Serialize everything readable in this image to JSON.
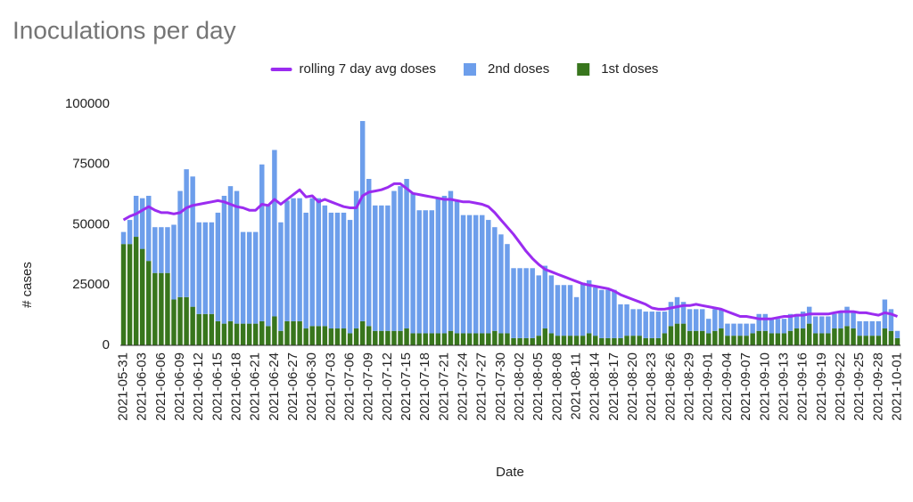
{
  "chart_data": {
    "type": "bar",
    "stacked": true,
    "title": "Inoculations per day",
    "x_label": "Date",
    "y_label": "# cases",
    "categories": [
      "2021-05-31",
      null,
      null,
      "2021-06-03",
      null,
      null,
      "2021-06-06",
      null,
      null,
      "2021-06-09",
      null,
      null,
      "2021-06-12",
      null,
      null,
      "2021-06-15",
      null,
      null,
      "2021-06-18",
      null,
      null,
      "2021-06-21",
      null,
      null,
      "2021-06-24",
      null,
      null,
      "2021-06-27",
      null,
      null,
      "2021-06-30",
      null,
      null,
      "2021-07-03",
      null,
      null,
      "2021-07-06",
      null,
      null,
      "2021-07-09",
      null,
      null,
      "2021-07-12",
      null,
      null,
      "2021-07-15",
      null,
      null,
      "2021-07-18",
      null,
      null,
      "2021-07-21",
      null,
      null,
      "2021-07-24",
      null,
      null,
      "2021-07-27",
      null,
      null,
      "2021-07-30",
      null,
      null,
      "2021-08-02",
      null,
      null,
      "2021-08-05",
      null,
      null,
      "2021-08-08",
      null,
      null,
      "2021-08-11",
      null,
      null,
      "2021-08-14",
      null,
      null,
      "2021-08-17",
      null,
      null,
      "2021-08-20",
      null,
      null,
      "2021-08-23",
      null,
      null,
      "2021-08-26",
      null,
      null,
      "2021-08-29",
      null,
      null,
      "2021-09-01",
      null,
      null,
      "2021-09-04",
      null,
      null,
      "2021-09-07",
      null,
      null,
      "2021-09-10",
      null,
      null,
      "2021-09-13",
      null,
      null,
      "2021-09-16",
      null,
      null,
      "2021-09-19",
      null,
      null,
      "2021-09-22",
      null,
      null,
      "2021-09-25",
      null,
      null,
      "2021-09-28",
      null,
      null,
      "2021-10-01"
    ],
    "series": [
      {
        "name": "rolling 7 day avg doses",
        "type": "line",
        "color": "#9b2cf0",
        "values": [
          52000,
          53500,
          54500,
          56000,
          57500,
          56000,
          55000,
          55000,
          54500,
          55000,
          57000,
          58000,
          58500,
          59000,
          59500,
          60000,
          59500,
          58500,
          57500,
          57000,
          56000,
          56000,
          58500,
          58000,
          60500,
          58500,
          60500,
          62500,
          64500,
          61500,
          62000,
          59500,
          60500,
          59500,
          58500,
          57500,
          57000,
          57000,
          62000,
          63500,
          64000,
          64500,
          65500,
          67000,
          67000,
          65000,
          63000,
          62500,
          62000,
          61500,
          61000,
          60500,
          60500,
          60000,
          59500,
          59500,
          59000,
          58500,
          57500,
          55000,
          52000,
          49000,
          46000,
          42500,
          39000,
          36000,
          33500,
          31500,
          30500,
          29500,
          28500,
          27500,
          26500,
          25500,
          25000,
          24500,
          24000,
          23500,
          22500,
          21000,
          20000,
          19000,
          18000,
          17000,
          15500,
          15000,
          15000,
          15500,
          16000,
          16500,
          16500,
          17000,
          16500,
          16000,
          15500,
          15000,
          14000,
          13000,
          12000,
          12000,
          11500,
          11000,
          11000,
          11000,
          11500,
          12000,
          12000,
          12500,
          12500,
          13000,
          13000,
          13000,
          13000,
          13500,
          14000,
          14000,
          14000,
          13500,
          13500,
          13000,
          12500,
          13500,
          13000,
          12000
        ]
      },
      {
        "name": "2nd doses",
        "type": "bar",
        "color": "#6d9eeb",
        "values": [
          5000,
          10000,
          17000,
          21000,
          27000,
          19000,
          19000,
          19000,
          31000,
          44000,
          53000,
          54000,
          38000,
          38000,
          38000,
          45000,
          53000,
          56000,
          55000,
          38000,
          38000,
          38000,
          65000,
          50000,
          69000,
          45000,
          50000,
          51000,
          51000,
          48000,
          53000,
          53000,
          50000,
          48000,
          48000,
          48000,
          47000,
          57000,
          83000,
          61000,
          52000,
          52000,
          52000,
          58000,
          60000,
          62000,
          58000,
          51000,
          51000,
          51000,
          56000,
          57000,
          58000,
          55000,
          49000,
          49000,
          49000,
          49000,
          47000,
          43000,
          41000,
          37000,
          29000,
          29000,
          29000,
          29000,
          25000,
          26000,
          24000,
          21000,
          21000,
          21000,
          16000,
          22000,
          22000,
          20000,
          20000,
          20000,
          20000,
          14000,
          13000,
          11000,
          11000,
          11000,
          11000,
          11000,
          9000,
          10000,
          11000,
          9000,
          9000,
          9000,
          9000,
          6000,
          9000,
          8000,
          5000,
          5000,
          5000,
          5000,
          4000,
          7000,
          7000,
          6000,
          6000,
          6000,
          7000,
          6000,
          7000,
          7000,
          7000,
          7000,
          7000,
          6000,
          7000,
          8000,
          7000,
          6000,
          6000,
          6000,
          6000,
          12000,
          9000,
          3000
        ]
      },
      {
        "name": "1st doses",
        "type": "bar",
        "color": "#38761d",
        "values": [
          42000,
          42000,
          45000,
          40000,
          35000,
          30000,
          30000,
          30000,
          19000,
          20000,
          20000,
          16000,
          13000,
          13000,
          13000,
          10000,
          9000,
          10000,
          9000,
          9000,
          9000,
          9000,
          10000,
          8000,
          12000,
          6000,
          10000,
          10000,
          10000,
          7000,
          8000,
          8000,
          8000,
          7000,
          7000,
          7000,
          5000,
          7000,
          10000,
          8000,
          6000,
          6000,
          6000,
          6000,
          6000,
          7000,
          5000,
          5000,
          5000,
          5000,
          5000,
          5000,
          6000,
          5000,
          5000,
          5000,
          5000,
          5000,
          5000,
          6000,
          5000,
          5000,
          3000,
          3000,
          3000,
          3000,
          4000,
          7000,
          5000,
          4000,
          4000,
          4000,
          4000,
          4000,
          5000,
          4000,
          3000,
          3000,
          3000,
          3000,
          4000,
          4000,
          4000,
          3000,
          3000,
          3000,
          5000,
          8000,
          9000,
          9000,
          6000,
          6000,
          6000,
          5000,
          6000,
          7000,
          4000,
          4000,
          4000,
          4000,
          5000,
          6000,
          6000,
          5000,
          5000,
          5000,
          6000,
          7000,
          7000,
          9000,
          5000,
          5000,
          5000,
          7000,
          7000,
          8000,
          7000,
          4000,
          4000,
          4000,
          4000,
          7000,
          6000,
          3000
        ]
      }
    ],
    "ylim": [
      0,
      100000
    ],
    "yticks": [
      0,
      25000,
      50000,
      75000,
      100000
    ],
    "grid": false,
    "legend": "top"
  }
}
